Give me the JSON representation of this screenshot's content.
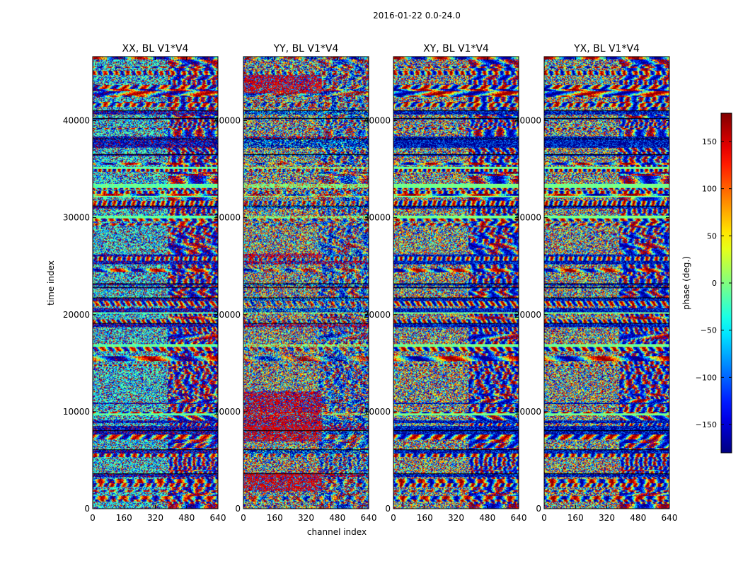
{
  "chart_data": {
    "type": "heatmap",
    "suptitle": "2016-01-22 0.0-24.0",
    "panels": [
      {
        "title": "XX, BL V1*V4",
        "texture": "xx"
      },
      {
        "title": "YY, BL V1*V4",
        "texture": "yy"
      },
      {
        "title": "XY, BL V1*V4",
        "texture": "xy"
      },
      {
        "title": "YX, BL V1*V4",
        "texture": "yx"
      }
    ],
    "xlabel": "channel index",
    "ylabel": "time index",
    "xlim": [
      0,
      640
    ],
    "ylim": [
      0,
      46600
    ],
    "xticks": [
      0,
      160,
      320,
      480,
      640
    ],
    "yticks": [
      0,
      10000,
      20000,
      30000,
      40000
    ],
    "colorbar": {
      "label": "phase (deg.)",
      "vmin": -180,
      "vmax": 180,
      "ticks": [
        150,
        100,
        50,
        0,
        -50,
        -100,
        -150
      ],
      "colormap": "jet"
    }
  }
}
